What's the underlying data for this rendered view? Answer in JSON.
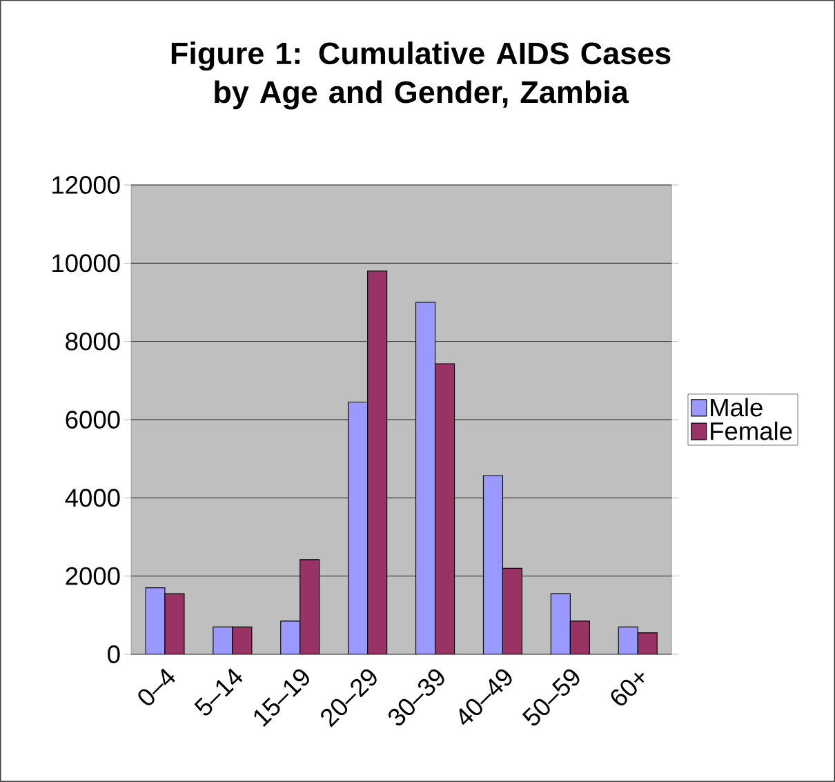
{
  "chart_data": {
    "type": "bar",
    "title": "Figure 1: Cumulative AIDS Cases by Age and Gender, Zambia",
    "categories": [
      "0–4",
      "5–14",
      "15–19",
      "20–29",
      "30–39",
      "40–49",
      "50–59",
      "60+"
    ],
    "series": [
      {
        "name": "Male",
        "color": "#9999ff",
        "values": [
          1700,
          700,
          850,
          6450,
          9000,
          4570,
          1550,
          700
        ]
      },
      {
        "name": "Female",
        "color": "#993366",
        "values": [
          1550,
          700,
          2420,
          9800,
          7430,
          2200,
          850,
          550
        ]
      }
    ],
    "ylim": [
      0,
      12000
    ],
    "yticks": [
      0,
      2000,
      4000,
      6000,
      8000,
      10000,
      12000
    ],
    "grid": "y",
    "legend": "right"
  }
}
